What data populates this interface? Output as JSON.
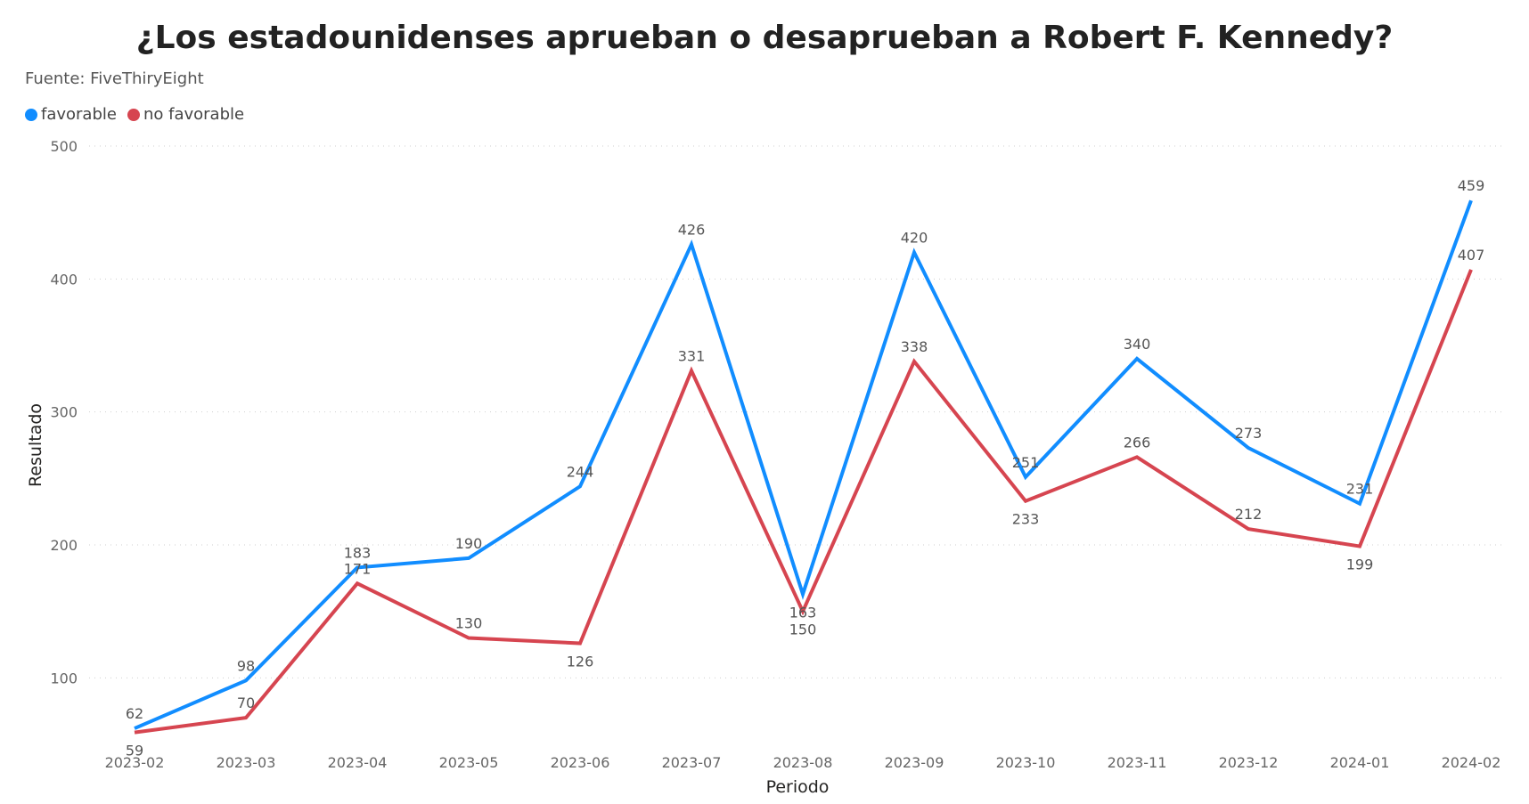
{
  "chart_data": {
    "type": "line",
    "title": "¿Los estadounidenses aprueban o desaprueban a Robert F. Kennedy?",
    "subtitle": "Fuente: FiveThiryEight",
    "xlabel": "Periodo",
    "ylabel": "Resultado",
    "ylim": [
      50,
      500
    ],
    "yticks": [
      100,
      200,
      300,
      400,
      500
    ],
    "grid": true,
    "legend_position": "top-left",
    "categories": [
      "2023-02",
      "2023-03",
      "2023-04",
      "2023-05",
      "2023-06",
      "2023-07",
      "2023-08",
      "2023-09",
      "2023-10",
      "2023-11",
      "2023-12",
      "2024-01",
      "2024-02"
    ],
    "series": [
      {
        "name": "favorable",
        "color": "#118DFF",
        "values": [
          62,
          98,
          183,
          190,
          244,
          426,
          163,
          420,
          251,
          340,
          273,
          231,
          459
        ],
        "label_positions": [
          "above",
          "above",
          "above",
          "above",
          "above",
          "above",
          "below",
          "above",
          "above",
          "above",
          "above",
          "above",
          "above"
        ]
      },
      {
        "name": "no favorable",
        "color": "#D64550",
        "values": [
          59,
          70,
          171,
          130,
          126,
          331,
          150,
          338,
          233,
          266,
          212,
          199,
          407
        ],
        "label_positions": [
          "below",
          "above",
          "above",
          "above",
          "below",
          "above",
          "below",
          "above",
          "below",
          "above",
          "above",
          "below",
          "above"
        ]
      }
    ]
  }
}
